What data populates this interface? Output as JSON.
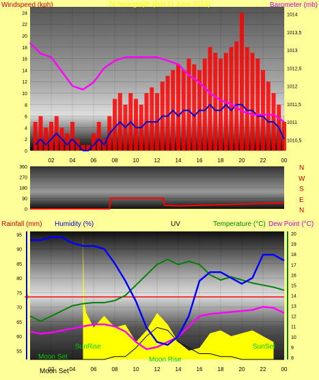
{
  "header": {
    "left_title": "Windspeed (kph)",
    "center_title": "24 hour graph (last 11 June 2014)",
    "right_title": "Barometer (mb)"
  },
  "panel3_header": {
    "rainfall": "Rainfall (mm)",
    "humidity": "Humidity (%)",
    "uv": "UV",
    "temperature": "Temperature (°C)",
    "dewpoint": "Dew Point (°C)"
  },
  "compass": [
    "N",
    "W",
    "S",
    "E",
    "N"
  ],
  "events": {
    "moonset_top": "Moon Set",
    "moonset_bottom": "Moon Set",
    "sunrise": "SunRise",
    "sunset": "SunSet",
    "moonrise": "Moon Rise"
  },
  "colors": {
    "windspeed": "#ff0000",
    "gust": "#ff0000",
    "avg_wind": "#0000cc",
    "barometer": "#ff00ff",
    "wind_dir": "#ff0000",
    "humidity": "#0000ff",
    "temperature": "#008000",
    "dewpoint": "#ff00ff",
    "uv": "#ffff00",
    "rain": "#ff0000",
    "solar": "#000000"
  },
  "chart_data": [
    {
      "type": "line",
      "x_ticks": [
        "02",
        "04",
        "06",
        "08",
        "10",
        "12",
        "14",
        "16",
        "18",
        "20",
        "22",
        "00"
      ],
      "y_ticks_left": [
        "0",
        "2",
        "4",
        "6",
        "8",
        "10",
        "12",
        "14",
        "16",
        "18",
        "20",
        "22",
        "24"
      ],
      "y_ticks_right": [
        "1010,5",
        "1011",
        "1011,5",
        "1012",
        "1012,5",
        "1013",
        "1013,5",
        "1014"
      ],
      "ylim_left": [
        0,
        25
      ],
      "ylim_right": [
        1010.2,
        1014.2
      ],
      "series": [
        {
          "key": "gust",
          "x": [
            0.5,
            1,
            1.5,
            2,
            2.5,
            3,
            3.5,
            4,
            4.5,
            5,
            5.5,
            6,
            6.5,
            7,
            7.5,
            8,
            8.5,
            9,
            9.5,
            10,
            10.5,
            11,
            11.5,
            12,
            12.5,
            13,
            13.5,
            14,
            14.5,
            15,
            15.5,
            16,
            16.5,
            17,
            17.5,
            18,
            18.5,
            19,
            19.5,
            20,
            20.5,
            21,
            21.5,
            22,
            22.5,
            23,
            23.5,
            24
          ],
          "values": [
            5,
            6,
            4,
            5,
            6,
            4,
            3,
            5,
            2,
            1,
            1,
            3,
            5,
            2,
            6,
            9,
            10,
            8,
            10,
            9,
            8,
            10,
            11,
            10,
            12,
            13,
            14,
            15,
            14,
            16,
            15,
            14,
            16,
            18,
            17,
            16,
            17,
            18,
            19,
            24,
            18,
            17,
            16,
            14,
            12,
            10,
            8,
            5
          ]
        },
        {
          "key": "avg_wind",
          "x": [
            0.5,
            1,
            1.5,
            2,
            2.5,
            3,
            3.5,
            4,
            4.5,
            5,
            5.5,
            6,
            6.5,
            7,
            7.5,
            8,
            8.5,
            9,
            9.5,
            10,
            10.5,
            11,
            11.5,
            12,
            12.5,
            13,
            13.5,
            14,
            14.5,
            15,
            15.5,
            16,
            16.5,
            17,
            17.5,
            18,
            18.5,
            19,
            19.5,
            20,
            20.5,
            21,
            21.5,
            22,
            22.5,
            23,
            23.5,
            24
          ],
          "values": [
            1,
            2,
            1,
            2,
            3,
            2,
            1,
            2,
            1,
            0,
            0,
            1,
            2,
            1,
            3,
            4,
            5,
            4,
            5,
            4,
            4,
            5,
            5,
            5,
            6,
            6,
            7,
            6,
            7,
            7,
            6,
            7,
            7,
            8,
            7,
            7,
            8,
            7,
            8,
            8,
            7,
            7,
            6,
            6,
            5,
            5,
            4,
            2
          ]
        },
        {
          "key": "barometer",
          "x": [
            0,
            1,
            2,
            3,
            4,
            5,
            6,
            7,
            8,
            9,
            10,
            11,
            12,
            13,
            14,
            15,
            16,
            17,
            18,
            19,
            20,
            21,
            22,
            23,
            24
          ],
          "values": [
            1013.2,
            1012.9,
            1012.8,
            1012.4,
            1012.0,
            1011.9,
            1012.1,
            1012.5,
            1012.7,
            1012.8,
            1012.8,
            1012.8,
            1012.8,
            1012.7,
            1012.6,
            1012.3,
            1012.1,
            1011.8,
            1011.6,
            1011.5,
            1011.3,
            1011.2,
            1011.2,
            1011.2,
            1011.0
          ]
        }
      ]
    },
    {
      "type": "line",
      "x_ticks": [],
      "y_ticks_left": [
        "0",
        "90",
        "180",
        "270",
        "360"
      ],
      "ylim_left": [
        0,
        360
      ],
      "series": [
        {
          "key": "wind_dir",
          "x": [
            0,
            7.5,
            7.6,
            12.6,
            12.7,
            14,
            16,
            18,
            20,
            22,
            24
          ],
          "values": [
            0,
            0,
            90,
            90,
            30,
            25,
            30,
            35,
            40,
            45,
            50
          ]
        }
      ]
    },
    {
      "type": "line",
      "x_ticks": [
        "02",
        "04",
        "06",
        "08",
        "10",
        "12",
        "14",
        "16",
        "18",
        "20",
        "22",
        "00"
      ],
      "y_ticks_left": [
        "55",
        "60",
        "65",
        "70",
        "75",
        "80",
        "85",
        "90",
        "95"
      ],
      "y_ticks_right": [
        "8",
        "9",
        "10",
        "11",
        "12",
        "13",
        "14",
        "15",
        "16",
        "17",
        "18",
        "19",
        "20"
      ],
      "rain_label": "0",
      "ylim_left": [
        52,
        96
      ],
      "ylim_right": [
        7.8,
        20.2
      ],
      "series": [
        {
          "key": "humidity",
          "x": [
            0,
            1,
            2,
            3,
            4,
            5,
            6,
            7,
            8,
            9,
            10,
            11,
            12,
            13,
            14,
            15,
            16,
            17,
            18,
            19,
            20,
            21,
            22,
            23,
            24
          ],
          "values": [
            93,
            93,
            94,
            94,
            92,
            91,
            91,
            90,
            85,
            79,
            72,
            63,
            58,
            57,
            60,
            67,
            79,
            82,
            82,
            80,
            78,
            80,
            88,
            88,
            86
          ]
        },
        {
          "key": "temperature",
          "x": [
            0,
            1,
            2,
            3,
            4,
            5,
            6,
            7,
            8,
            9,
            10,
            11,
            12,
            13,
            14,
            15,
            16,
            17,
            18,
            19,
            20,
            21,
            22,
            23,
            24
          ],
          "values": [
            12,
            11.5,
            12,
            12.5,
            13,
            13.2,
            13.3,
            13.3,
            13.5,
            14,
            15,
            16,
            17,
            17.5,
            17,
            17.3,
            17,
            16,
            15.5,
            15.8,
            15.5,
            15.2,
            15,
            14.8,
            14.5
          ]
        },
        {
          "key": "dewpoint",
          "x": [
            0,
            1,
            2,
            3,
            4,
            5,
            6,
            7,
            8,
            9,
            10,
            11,
            12,
            13,
            14,
            15,
            16,
            17,
            18,
            19,
            20,
            21,
            22,
            23,
            24
          ],
          "values": [
            10.5,
            10.3,
            10.4,
            10.6,
            10.8,
            11.0,
            11.2,
            11.2,
            11.0,
            10.5,
            9.5,
            8.8,
            9.0,
            9.5,
            10.0,
            11.0,
            12.0,
            12.2,
            12.3,
            12.4,
            12.5,
            12.6,
            12.9,
            12.8,
            12.3
          ]
        },
        {
          "key": "uv",
          "x": [
            5.0,
            5.1,
            5.3,
            6,
            7,
            8,
            9,
            10,
            11,
            12,
            13,
            14,
            15,
            16,
            17,
            18,
            19,
            20,
            21,
            22,
            23
          ],
          "values": [
            95,
            72,
            68,
            63,
            67,
            63,
            64,
            58,
            62,
            68,
            64,
            58,
            55,
            56,
            61,
            62,
            60,
            61,
            62,
            60,
            58
          ]
        },
        {
          "key": "solar",
          "x": [
            0,
            7,
            8,
            9,
            10,
            11,
            12,
            13,
            14,
            15,
            16,
            17,
            18,
            19,
            20,
            21,
            22,
            23,
            24
          ],
          "values": [
            52,
            52,
            53,
            53,
            56,
            60,
            63,
            62,
            58,
            56,
            54,
            54,
            53,
            53,
            52,
            52,
            52,
            52,
            52
          ]
        }
      ]
    }
  ]
}
